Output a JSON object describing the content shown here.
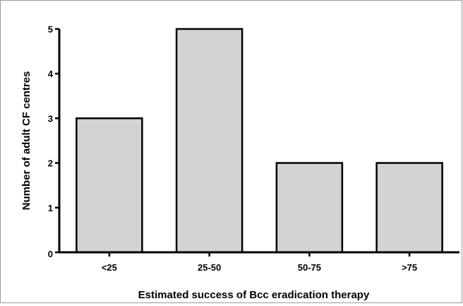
{
  "chart_data": {
    "type": "bar",
    "categories": [
      "<25",
      "25-50",
      "50-75",
      ">75"
    ],
    "values": [
      3,
      5,
      2,
      2
    ],
    "xlabel": "Estimated success of Bcc eradication therapy",
    "ylabel": "Number of adult CF centres",
    "ylim": [
      0,
      5
    ],
    "yticks": [
      0,
      1,
      2,
      3,
      4,
      5
    ],
    "grid": false,
    "legend": "none",
    "colors": {
      "bar_fill": "#d3d3d3",
      "bar_stroke": "#000000",
      "axis": "#000000",
      "frame": "#9a9a9a"
    }
  }
}
